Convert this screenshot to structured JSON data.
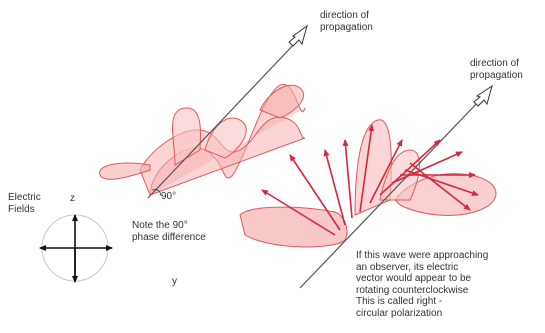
{
  "labels": {
    "direction_1": [
      "direction of",
      "propagation"
    ],
    "direction_2": [
      "direction of",
      "propagation"
    ],
    "electric_fields": [
      "Electric",
      "Fields"
    ],
    "axis_z": "z",
    "axis_y": "y",
    "angle": "90°",
    "note": [
      "Note the 90°",
      "phase difference"
    ],
    "observer_text": [
      "If this wave were approaching",
      "an observer, its electric",
      "vector would appear to be",
      "rotating counterclockwise",
      "This is called right -",
      "circular polarization"
    ]
  },
  "colors": {
    "wave_fill": "#f7b8b8",
    "wave_stroke": "#e05a5a",
    "vector": "#d7263d",
    "axis_line": "#555555",
    "axes_cross": "#111111"
  }
}
